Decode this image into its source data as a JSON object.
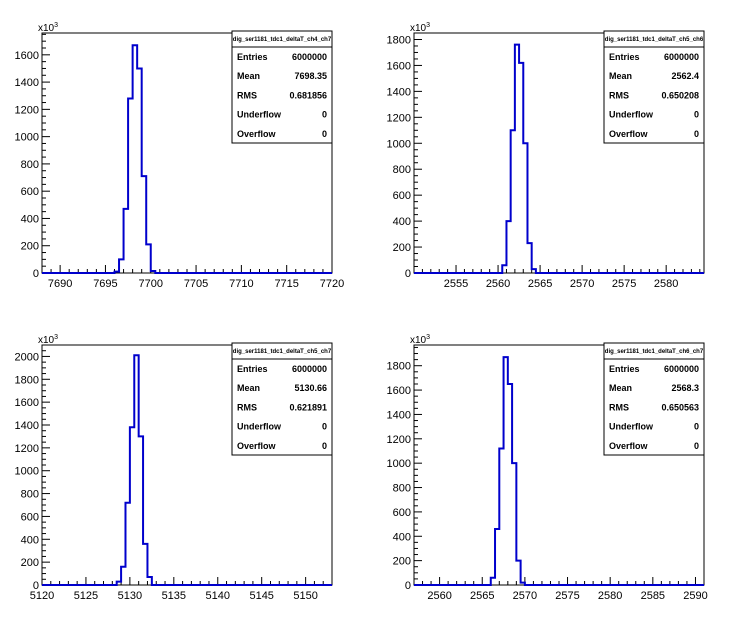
{
  "colors": {
    "histogram": "#0000cc",
    "axis": "#000000",
    "background": "#ffffff"
  },
  "chart_data": [
    {
      "type": "histogram",
      "title": "",
      "xlabel": "",
      "ylabel": "",
      "y_exponent": {
        "base": "x10",
        "power": "3"
      },
      "xlim": [
        7688,
        7720
      ],
      "ylim": [
        0,
        1760
      ],
      "x_ticks": [
        7690,
        7695,
        7700,
        7705,
        7710,
        7715,
        7720
      ],
      "y_ticks": [
        0,
        200,
        400,
        600,
        800,
        1000,
        1200,
        1400,
        1600
      ],
      "bin_width": 0.5,
      "bins_x": [
        7696.0,
        7696.5,
        7697.0,
        7697.5,
        7698.0,
        7698.5,
        7699.0,
        7699.5,
        7700.0
      ],
      "bins_y": [
        10,
        100,
        470,
        1280,
        1670,
        1500,
        710,
        210,
        15
      ],
      "stats": {
        "title": "dig_ser1181_tdc1_deltaT_ch4_ch7",
        "rows": [
          {
            "label": "Entries",
            "value": "6000000"
          },
          {
            "label": "Mean",
            "value": "7698.35"
          },
          {
            "label": "RMS",
            "value": "0.681856"
          },
          {
            "label": "Underflow",
            "value": "0"
          },
          {
            "label": "Overflow",
            "value": "0"
          }
        ]
      }
    },
    {
      "type": "histogram",
      "title": "",
      "xlabel": "",
      "ylabel": "",
      "y_exponent": {
        "base": "x10",
        "power": "3"
      },
      "xlim": [
        2550,
        2584.5
      ],
      "ylim": [
        0,
        1850
      ],
      "x_ticks": [
        2555,
        2560,
        2565,
        2570,
        2575,
        2580
      ],
      "y_ticks": [
        0,
        200,
        400,
        600,
        800,
        1000,
        1200,
        1400,
        1600,
        1800
      ],
      "bin_width": 0.5,
      "bins_x": [
        2560.5,
        2561.0,
        2561.5,
        2562.0,
        2562.5,
        2563.0,
        2563.5,
        2564.0
      ],
      "bins_y": [
        60,
        400,
        1100,
        1760,
        1620,
        1000,
        230,
        30
      ],
      "stats": {
        "title": "dig_ser1181_tdc1_deltaT_ch5_ch6",
        "rows": [
          {
            "label": "Entries",
            "value": "6000000"
          },
          {
            "label": "Mean",
            "value": "2562.4"
          },
          {
            "label": "RMS",
            "value": "0.650208"
          },
          {
            "label": "Underflow",
            "value": "0"
          },
          {
            "label": "Overflow",
            "value": "0"
          }
        ]
      }
    },
    {
      "type": "histogram",
      "title": "",
      "xlabel": "",
      "ylabel": "",
      "y_exponent": {
        "base": "x10",
        "power": "3"
      },
      "xlim": [
        5120,
        5153
      ],
      "ylim": [
        0,
        2100
      ],
      "x_ticks": [
        5120,
        5125,
        5130,
        5135,
        5140,
        5145,
        5150
      ],
      "y_ticks": [
        0,
        200,
        400,
        600,
        800,
        1000,
        1200,
        1400,
        1600,
        1800,
        2000
      ],
      "bin_width": 0.5,
      "bins_x": [
        5128.5,
        5129.0,
        5129.5,
        5130.0,
        5130.5,
        5131.0,
        5131.5,
        5132.0
      ],
      "bins_y": [
        30,
        160,
        720,
        1380,
        2010,
        1300,
        360,
        70
      ],
      "stats": {
        "title": "dig_ser1181_tdc1_deltaT_ch5_ch7",
        "rows": [
          {
            "label": "Entries",
            "value": "6000000"
          },
          {
            "label": "Mean",
            "value": "5130.66"
          },
          {
            "label": "RMS",
            "value": "0.621891"
          },
          {
            "label": "Underflow",
            "value": "0"
          },
          {
            "label": "Overflow",
            "value": "0"
          }
        ]
      }
    },
    {
      "type": "histogram",
      "title": "",
      "xlabel": "",
      "ylabel": "",
      "y_exponent": {
        "base": "x10",
        "power": "3"
      },
      "xlim": [
        2557,
        2591
      ],
      "ylim": [
        0,
        1970
      ],
      "x_ticks": [
        2560,
        2565,
        2570,
        2575,
        2580,
        2585,
        2590
      ],
      "y_ticks": [
        0,
        200,
        400,
        600,
        800,
        1000,
        1200,
        1400,
        1600,
        1800
      ],
      "bin_width": 0.5,
      "bins_x": [
        2566.0,
        2566.5,
        2567.0,
        2567.5,
        2568.0,
        2568.5,
        2569.0,
        2569.5
      ],
      "bins_y": [
        60,
        460,
        1120,
        1870,
        1650,
        1000,
        200,
        20
      ],
      "stats": {
        "title": "dig_ser1181_tdc1_deltaT_ch6_ch7",
        "rows": [
          {
            "label": "Entries",
            "value": "6000000"
          },
          {
            "label": "Mean",
            "value": "2568.3"
          },
          {
            "label": "RMS",
            "value": "0.650563"
          },
          {
            "label": "Underflow",
            "value": "0"
          },
          {
            "label": "Overflow",
            "value": "0"
          }
        ]
      }
    }
  ]
}
